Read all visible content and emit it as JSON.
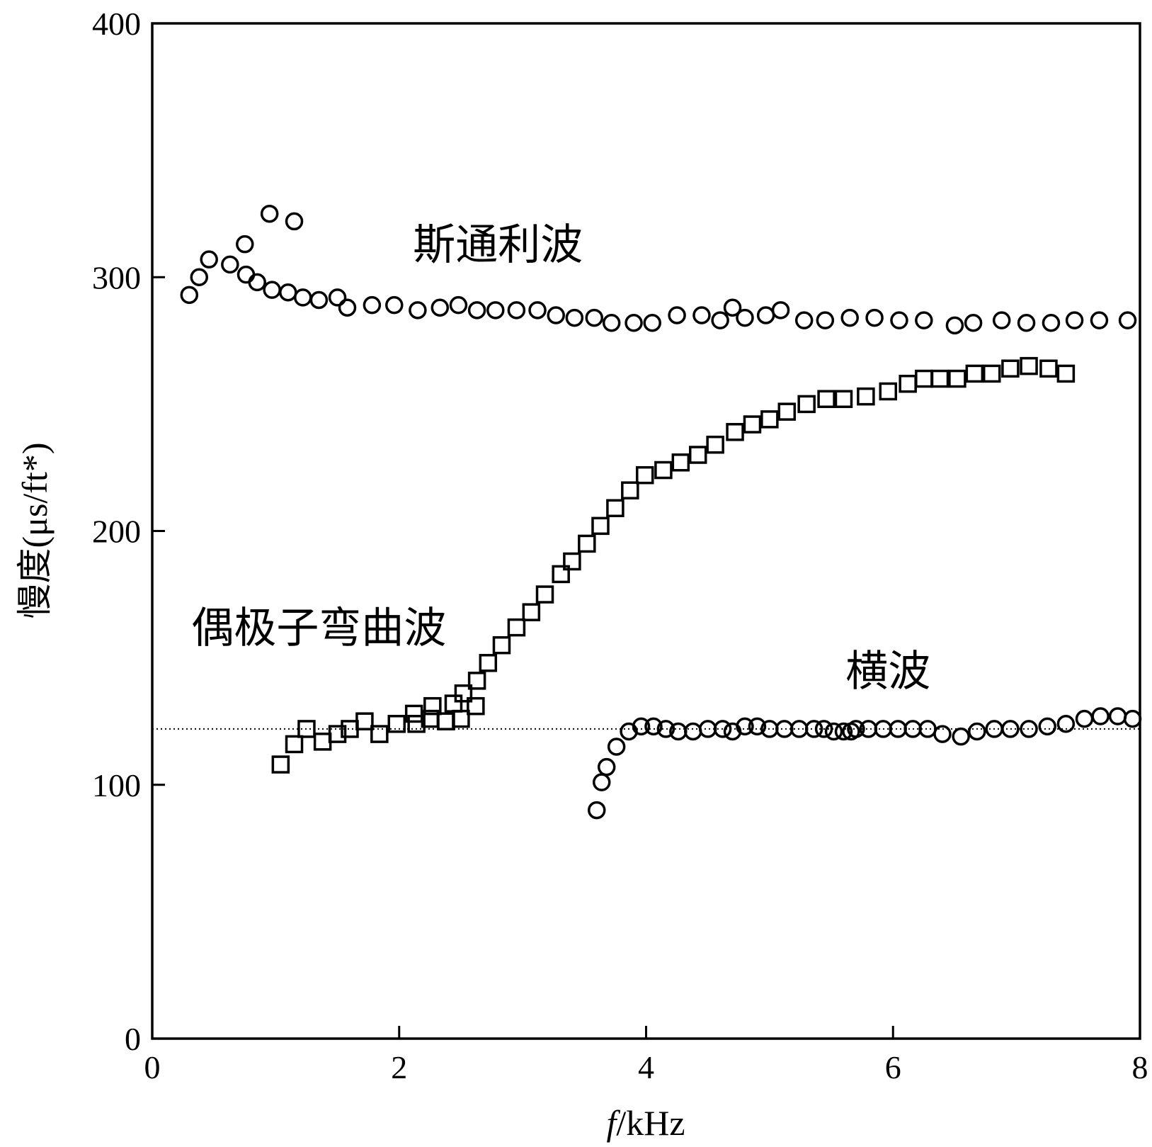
{
  "chart_data": {
    "type": "scatter",
    "xlabel_italic": "f",
    "xlabel_rest": "/kHz",
    "ylabel": "慢度(μs/ft*)",
    "xlim": [
      0,
      8
    ],
    "ylim": [
      0,
      400
    ],
    "xticks": [
      0,
      2,
      4,
      6,
      8
    ],
    "yticks": [
      0,
      100,
      200,
      300,
      400
    ],
    "grid": false,
    "reference_line": {
      "y": 122,
      "style": "dotted"
    },
    "annotations": [
      {
        "text": "斯通利波",
        "x": 2.8,
        "y": 307
      },
      {
        "text": "偶极子弯曲波",
        "x": 1.35,
        "y": 156
      },
      {
        "text": "横波",
        "x": 5.96,
        "y": 139
      }
    ],
    "series": [
      {
        "marker": "circle",
        "values": [
          [
            0.3,
            293
          ],
          [
            0.38,
            300
          ],
          [
            0.46,
            307
          ],
          [
            0.63,
            305
          ],
          [
            0.75,
            313
          ],
          [
            0.76,
            301
          ],
          [
            0.85,
            298
          ],
          [
            0.95,
            325
          ],
          [
            0.97,
            295
          ],
          [
            1.1,
            294
          ],
          [
            1.15,
            322
          ],
          [
            1.22,
            292
          ],
          [
            1.35,
            291
          ],
          [
            1.5,
            292
          ],
          [
            1.58,
            288
          ],
          [
            1.78,
            289
          ],
          [
            1.96,
            289
          ],
          [
            2.15,
            287
          ],
          [
            2.33,
            288
          ],
          [
            2.48,
            289
          ],
          [
            2.63,
            287
          ],
          [
            2.78,
            287
          ],
          [
            2.95,
            287
          ],
          [
            3.12,
            287
          ],
          [
            3.27,
            285
          ],
          [
            3.42,
            284
          ],
          [
            3.58,
            284
          ],
          [
            3.72,
            282
          ],
          [
            3.9,
            282
          ],
          [
            4.05,
            282
          ],
          [
            4.25,
            285
          ],
          [
            4.45,
            285
          ],
          [
            4.6,
            283
          ],
          [
            4.7,
            288
          ],
          [
            4.8,
            284
          ],
          [
            4.97,
            285
          ],
          [
            5.09,
            287
          ],
          [
            5.28,
            283
          ],
          [
            5.45,
            283
          ],
          [
            5.65,
            284
          ],
          [
            5.85,
            284
          ],
          [
            6.05,
            283
          ],
          [
            6.25,
            283
          ],
          [
            6.5,
            281
          ],
          [
            6.65,
            282
          ],
          [
            6.88,
            283
          ],
          [
            7.08,
            282
          ],
          [
            7.28,
            282
          ],
          [
            7.47,
            283
          ],
          [
            7.67,
            283
          ],
          [
            7.9,
            283
          ]
        ]
      },
      {
        "marker": "square",
        "values": [
          [
            1.04,
            108
          ],
          [
            1.15,
            116
          ],
          [
            1.25,
            122
          ],
          [
            1.38,
            117
          ],
          [
            1.5,
            120
          ],
          [
            1.6,
            122
          ],
          [
            1.72,
            125
          ],
          [
            1.84,
            120
          ],
          [
            1.98,
            124
          ],
          [
            2.12,
            128
          ],
          [
            2.14,
            124
          ],
          [
            2.25,
            126
          ],
          [
            2.27,
            131
          ],
          [
            2.38,
            125
          ],
          [
            2.44,
            132
          ],
          [
            2.5,
            126
          ],
          [
            2.52,
            136
          ],
          [
            2.62,
            131
          ],
          [
            2.63,
            141
          ],
          [
            2.72,
            148
          ],
          [
            2.83,
            155
          ],
          [
            2.95,
            162
          ],
          [
            3.07,
            168
          ],
          [
            3.18,
            175
          ],
          [
            3.31,
            183
          ],
          [
            3.4,
            188
          ],
          [
            3.52,
            195
          ],
          [
            3.63,
            202
          ],
          [
            3.75,
            209
          ],
          [
            3.87,
            216
          ],
          [
            3.99,
            222
          ],
          [
            4.14,
            224
          ],
          [
            4.28,
            227
          ],
          [
            4.42,
            230
          ],
          [
            4.56,
            234
          ],
          [
            4.72,
            239
          ],
          [
            4.86,
            242
          ],
          [
            5.0,
            244
          ],
          [
            5.14,
            247
          ],
          [
            5.3,
            250
          ],
          [
            5.46,
            252
          ],
          [
            5.6,
            252
          ],
          [
            5.78,
            253
          ],
          [
            5.96,
            255
          ],
          [
            6.12,
            258
          ],
          [
            6.25,
            260
          ],
          [
            6.38,
            260
          ],
          [
            6.52,
            260
          ],
          [
            6.66,
            262
          ],
          [
            6.8,
            262
          ],
          [
            6.95,
            264
          ],
          [
            7.1,
            265
          ],
          [
            7.26,
            264
          ],
          [
            7.4,
            262
          ]
        ]
      },
      {
        "marker": "circle",
        "values": [
          [
            3.6,
            90
          ],
          [
            3.64,
            101
          ],
          [
            3.68,
            107
          ],
          [
            3.76,
            115
          ],
          [
            3.86,
            121
          ],
          [
            3.96,
            123
          ],
          [
            4.06,
            123
          ],
          [
            4.16,
            122
          ],
          [
            4.26,
            121
          ],
          [
            4.38,
            121
          ],
          [
            4.5,
            122
          ],
          [
            4.62,
            122
          ],
          [
            4.7,
            121
          ],
          [
            4.8,
            123
          ],
          [
            4.9,
            123
          ],
          [
            5.0,
            122
          ],
          [
            5.12,
            122
          ],
          [
            5.24,
            122
          ],
          [
            5.36,
            122
          ],
          [
            5.44,
            122
          ],
          [
            5.52,
            121
          ],
          [
            5.6,
            121
          ],
          [
            5.66,
            121
          ],
          [
            5.7,
            122
          ],
          [
            5.8,
            122
          ],
          [
            5.92,
            122
          ],
          [
            6.04,
            122
          ],
          [
            6.16,
            122
          ],
          [
            6.28,
            122
          ],
          [
            6.4,
            120
          ],
          [
            6.55,
            119
          ],
          [
            6.68,
            121
          ],
          [
            6.82,
            122
          ],
          [
            6.95,
            122
          ],
          [
            7.1,
            122
          ],
          [
            7.25,
            123
          ],
          [
            7.4,
            124
          ],
          [
            7.55,
            126
          ],
          [
            7.68,
            127
          ],
          [
            7.82,
            127
          ],
          [
            7.94,
            126
          ]
        ]
      }
    ]
  }
}
